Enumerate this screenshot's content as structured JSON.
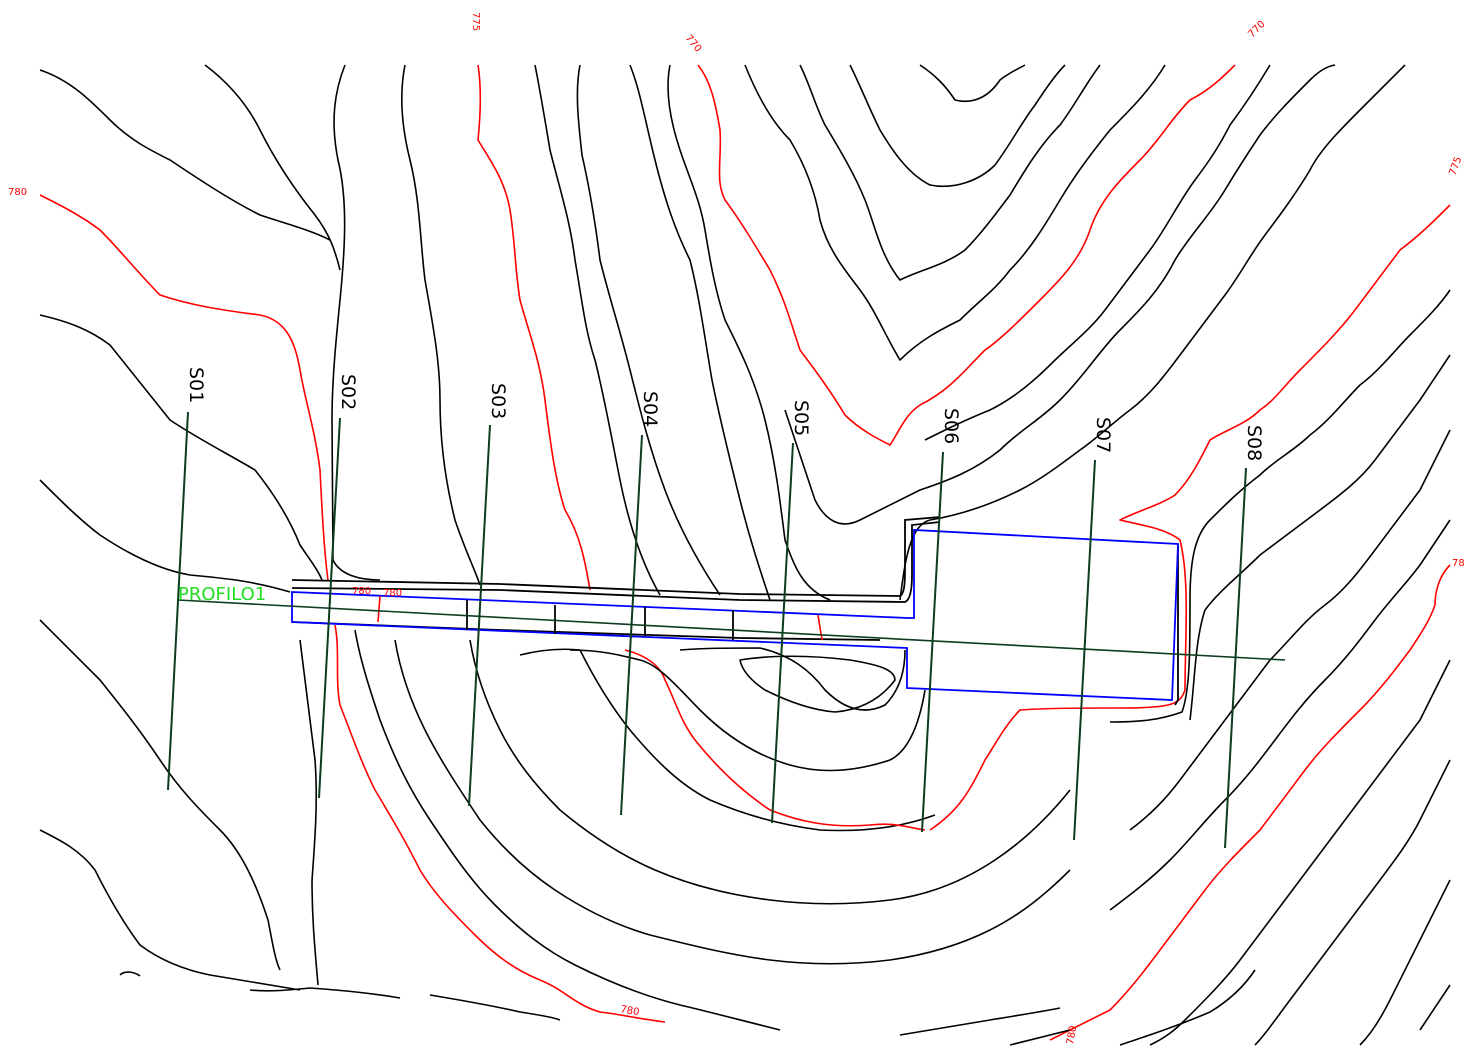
{
  "colors": {
    "contour": "#000000",
    "index_contour": "#ff0000",
    "section_line": "#0b3d1e",
    "profile_label": "#22dd22",
    "design_outline": "#0000ff"
  },
  "sections": [
    {
      "label": "S01"
    },
    {
      "label": "S02"
    },
    {
      "label": "S03"
    },
    {
      "label": "S04"
    },
    {
      "label": "S05"
    },
    {
      "label": "S06"
    },
    {
      "label": "S07"
    },
    {
      "label": "S08"
    }
  ],
  "profile": {
    "label": "PROFILO1"
  },
  "elevation_labels": [
    "775",
    "770",
    "770",
    "780",
    "775",
    "780",
    "780",
    "780",
    "78",
    "780"
  ]
}
